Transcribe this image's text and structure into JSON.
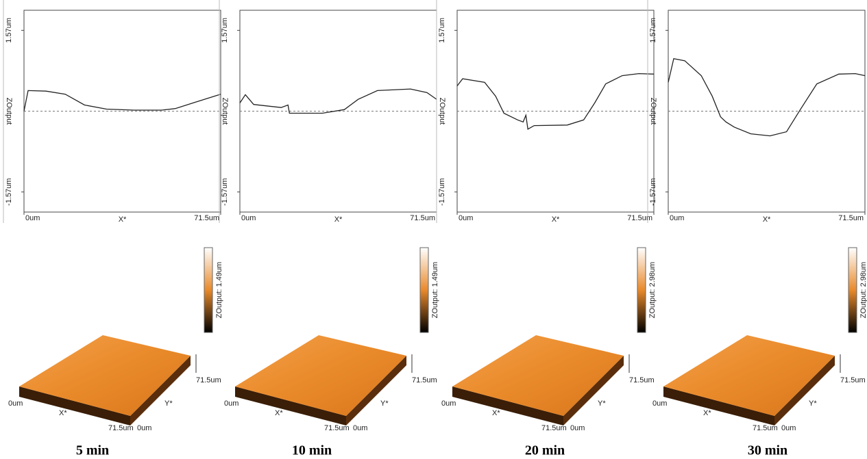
{
  "chart_data": [
    {
      "type": "line",
      "caption": "5 min",
      "x_label": "X*",
      "y_label": "ZOutput",
      "color": "#222",
      "xlim": [
        0,
        71.5
      ],
      "ylim": [
        -1.96,
        1.96
      ],
      "xticks": [
        {
          "value": 0,
          "label": "0um"
        },
        {
          "value": 71.5,
          "label": "71.5um"
        }
      ],
      "yticks": [
        {
          "value": -1.57,
          "label": "-1.57um"
        },
        {
          "value": 1.57,
          "label": "1.57um"
        }
      ],
      "zero_line": true,
      "x": [
        0,
        1.5,
        8,
        15,
        22,
        30,
        40,
        50,
        55,
        62,
        71.5
      ],
      "values": [
        0,
        0.4,
        0.39,
        0.33,
        0.12,
        0.04,
        0.02,
        0.02,
        0.05,
        0.17,
        0.33
      ]
    },
    {
      "type": "line",
      "caption": "10 min",
      "x_label": "X*",
      "y_label": "ZOutput",
      "color": "#222",
      "xlim": [
        0,
        71.5
      ],
      "ylim": [
        -1.96,
        1.96
      ],
      "xticks": [
        {
          "value": 0,
          "label": "0um"
        },
        {
          "value": 71.5,
          "label": "71.5um"
        }
      ],
      "yticks": [
        {
          "value": -1.57,
          "label": "-1.57um"
        },
        {
          "value": 1.57,
          "label": "1.57um"
        }
      ],
      "zero_line": true,
      "x": [
        0,
        2,
        5,
        15,
        17.5,
        18,
        30,
        38,
        43,
        50,
        62,
        68,
        71.5
      ],
      "values": [
        0.16,
        0.32,
        0.13,
        0.07,
        0.12,
        -0.04,
        -0.04,
        0.03,
        0.23,
        0.4,
        0.43,
        0.36,
        0.23
      ]
    },
    {
      "type": "line",
      "caption": "20 min",
      "x_label": "X*",
      "y_label": "ZOutput",
      "color": "#222",
      "xlim": [
        0,
        71.5
      ],
      "ylim": [
        -1.96,
        1.96
      ],
      "xticks": [
        {
          "value": 0,
          "label": "0um"
        },
        {
          "value": 71.5,
          "label": "71.5um"
        }
      ],
      "yticks": [
        {
          "value": -1.57,
          "label": "-1.57um"
        },
        {
          "value": 1.57,
          "label": "1.57um"
        }
      ],
      "zero_line": true,
      "x": [
        0,
        2,
        10,
        14,
        17,
        22,
        24,
        25,
        25.7,
        28,
        40,
        46,
        50,
        54,
        60,
        66,
        71.5
      ],
      "values": [
        0.49,
        0.63,
        0.56,
        0.29,
        -0.04,
        -0.17,
        -0.21,
        -0.08,
        -0.35,
        -0.28,
        -0.27,
        -0.17,
        0.16,
        0.53,
        0.69,
        0.73,
        0.72
      ]
    },
    {
      "type": "line",
      "caption": "30 min",
      "x_label": "X*",
      "y_label": "ZOutput",
      "color": "#222",
      "xlim": [
        0,
        71.5
      ],
      "ylim": [
        -1.96,
        1.96
      ],
      "xticks": [
        {
          "value": 0,
          "label": "0um"
        },
        {
          "value": 71.5,
          "label": "71.5um"
        }
      ],
      "yticks": [
        {
          "value": -1.57,
          "label": "-1.57um"
        },
        {
          "value": 1.57,
          "label": "1.57um"
        }
      ],
      "zero_line": true,
      "x": [
        0,
        2,
        6,
        12,
        16,
        19,
        21,
        24,
        30,
        37,
        43,
        48,
        54,
        62,
        68,
        71.5
      ],
      "values": [
        0.56,
        1.02,
        0.98,
        0.69,
        0.29,
        -0.11,
        -0.21,
        -0.31,
        -0.44,
        -0.48,
        -0.4,
        0.03,
        0.53,
        0.72,
        0.73,
        0.69
      ]
    }
  ],
  "surfaces": [
    {
      "scale_label": "ZOutput: 1.49um",
      "x_start": "0um",
      "x_label": "X*",
      "x_end": "71.5um",
      "y_start": "0um",
      "y_label": "Y*",
      "y_end": "71.5um"
    },
    {
      "scale_label": "ZOutput: 1.49um",
      "x_start": "0um",
      "x_label": "X*",
      "x_end": "71.5um",
      "y_start": "0um",
      "y_label": "Y*",
      "y_end": "71.5um"
    },
    {
      "scale_label": "ZOutput: 2.98um",
      "x_start": "0um",
      "x_label": "X*",
      "x_end": "71.5um",
      "y_start": "0um",
      "y_label": "Y*",
      "y_end": "71.5um"
    },
    {
      "scale_label": "ZOutput: 2.98um",
      "x_start": "0um",
      "x_label": "X*",
      "x_end": "71.5um",
      "y_start": "0um",
      "y_label": "Y*",
      "y_end": "71.5um"
    }
  ]
}
